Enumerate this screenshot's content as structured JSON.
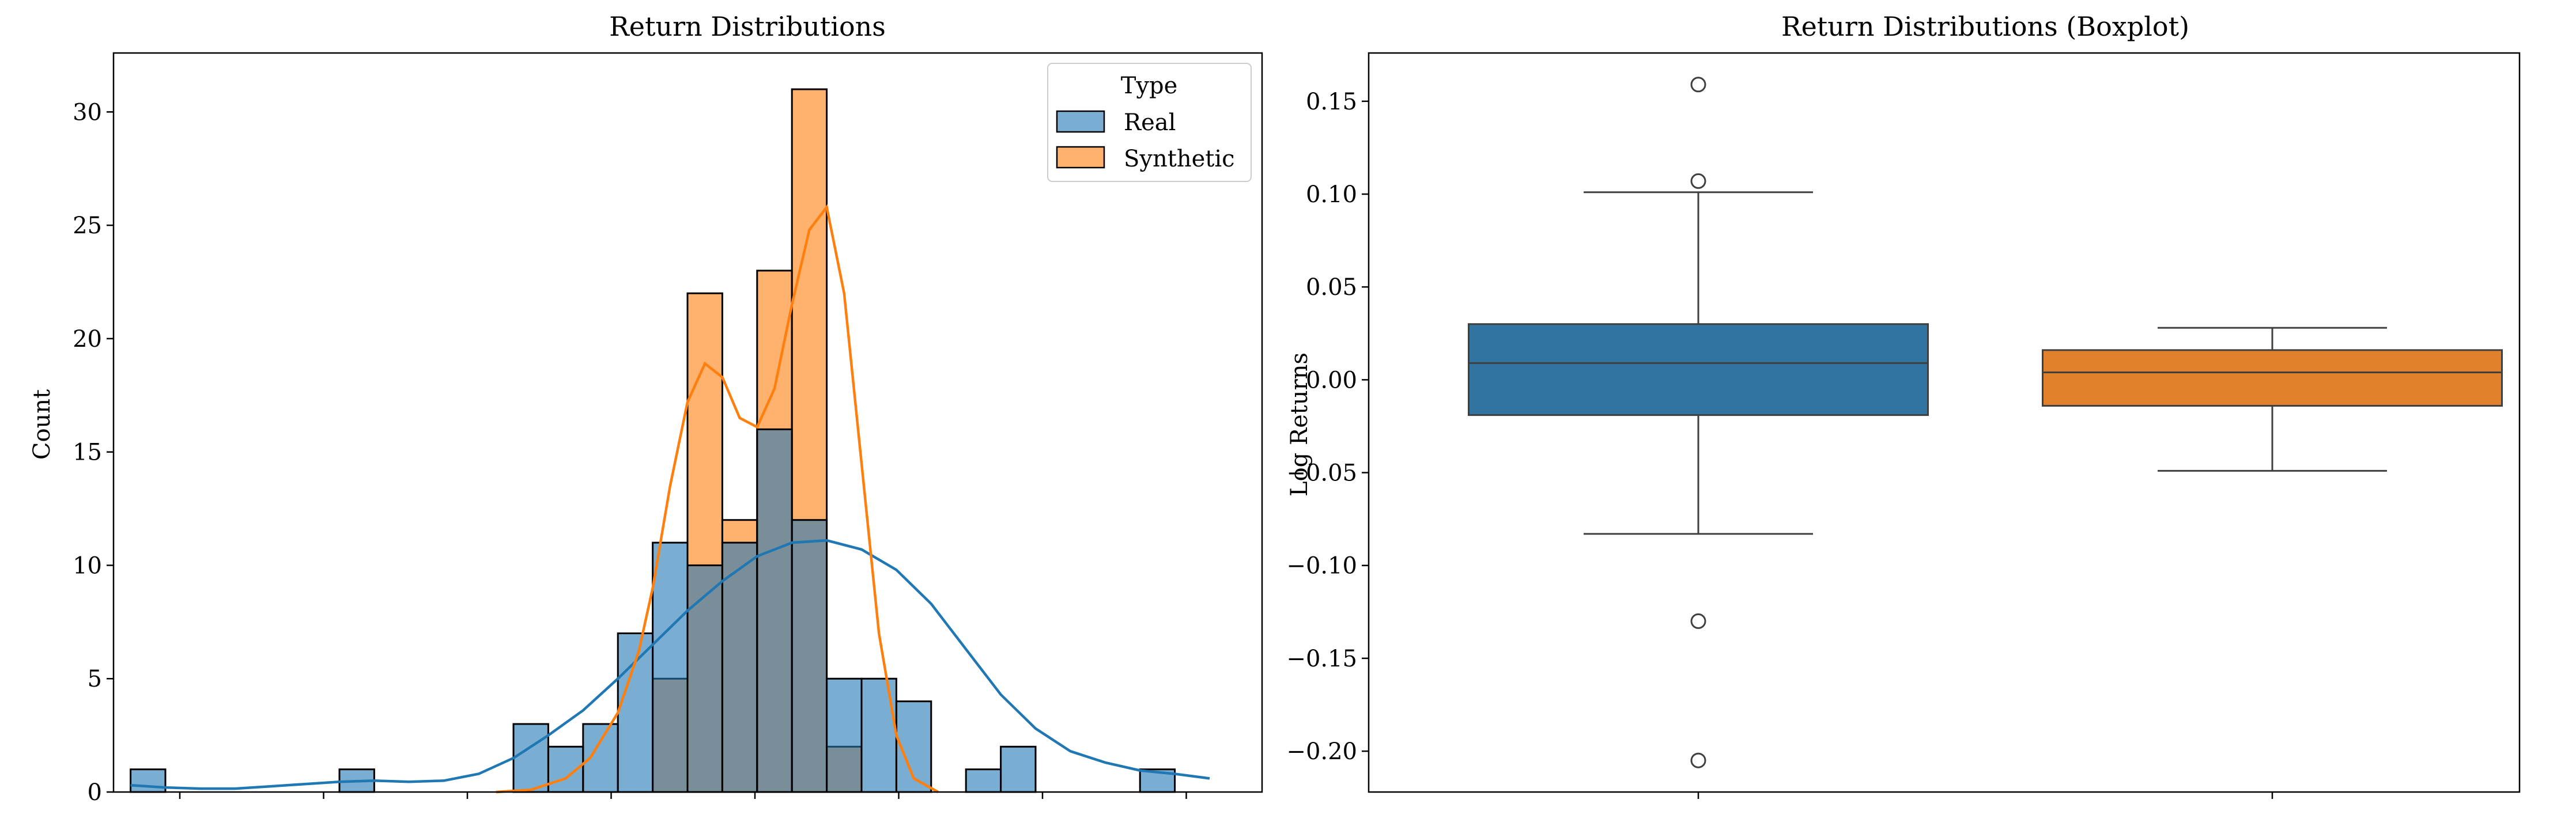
{
  "colors": {
    "real": "#1f77b4",
    "synthetic": "#ff7f0e",
    "real_box": "#3274a1",
    "synthetic_box": "#e1812c"
  },
  "chart_data": [
    {
      "type": "histogram",
      "title": "Return Distributions",
      "xlabel": "",
      "ylabel": "Count",
      "ylim": [
        0,
        32.6
      ],
      "yticks": [
        0,
        5,
        10,
        15,
        20,
        25,
        30
      ],
      "x_tick_marks": 8,
      "grid": false,
      "legend": {
        "title": "Type",
        "position": "top-right",
        "entries": [
          "Real",
          "Synthetic"
        ]
      },
      "bins": 30,
      "series": [
        {
          "name": "Real",
          "counts": [
            1,
            0,
            0,
            0,
            0,
            0,
            1,
            0,
            0,
            0,
            0,
            3,
            2,
            3,
            7,
            11,
            10,
            11,
            16,
            12,
            5,
            5,
            4,
            0,
            1,
            2,
            0,
            0,
            0,
            1
          ],
          "kde": [
            [
              0,
              0.3
            ],
            [
              1,
              0.2
            ],
            [
              2,
              0.15
            ],
            [
              3,
              0.15
            ],
            [
              4,
              0.25
            ],
            [
              5,
              0.35
            ],
            [
              6,
              0.45
            ],
            [
              7,
              0.5
            ],
            [
              8,
              0.45
            ],
            [
              9,
              0.5
            ],
            [
              10,
              0.8
            ],
            [
              11,
              1.5
            ],
            [
              12,
              2.5
            ],
            [
              13,
              3.6
            ],
            [
              14,
              5.0
            ],
            [
              15,
              6.5
            ],
            [
              16,
              8.0
            ],
            [
              17,
              9.3
            ],
            [
              18,
              10.4
            ],
            [
              19,
              11.0
            ],
            [
              20,
              11.1
            ],
            [
              21,
              10.7
            ],
            [
              22,
              9.8
            ],
            [
              23,
              8.3
            ],
            [
              24,
              6.3
            ],
            [
              25,
              4.3
            ],
            [
              26,
              2.8
            ],
            [
              27,
              1.8
            ],
            [
              28,
              1.3
            ],
            [
              29,
              0.95
            ],
            [
              30,
              0.8
            ],
            [
              31,
              0.6
            ]
          ]
        },
        {
          "name": "Synthetic",
          "counts": [
            0,
            0,
            0,
            0,
            0,
            0,
            0,
            0,
            0,
            0,
            0,
            0,
            0,
            0,
            0,
            5,
            22,
            12,
            23,
            31,
            2,
            0,
            0,
            0,
            0,
            0,
            0,
            0,
            0,
            0
          ],
          "kde": [
            [
              10.5,
              0
            ],
            [
              11.5,
              0.1
            ],
            [
              12.5,
              0.6
            ],
            [
              13.2,
              1.5
            ],
            [
              14,
              3.5
            ],
            [
              14.6,
              6.2
            ],
            [
              15,
              9.0
            ],
            [
              15.5,
              13.5
            ],
            [
              16,
              17.2
            ],
            [
              16.5,
              18.9
            ],
            [
              17,
              18.3
            ],
            [
              17.5,
              16.5
            ],
            [
              18,
              16.1
            ],
            [
              18.5,
              17.8
            ],
            [
              19,
              21.5
            ],
            [
              19.5,
              24.8
            ],
            [
              20,
              25.8
            ],
            [
              20.5,
              22.0
            ],
            [
              21,
              14.5
            ],
            [
              21.5,
              7.0
            ],
            [
              22,
              2.5
            ],
            [
              22.5,
              0.6
            ],
            [
              23.2,
              0
            ]
          ]
        }
      ]
    },
    {
      "type": "box",
      "title": "Return Distributions (Boxplot)",
      "xlabel": "",
      "ylabel": "Log Returns",
      "ylim": [
        -0.222,
        0.176
      ],
      "yticks": [
        "-0.20",
        "-0.15",
        "-0.10",
        "-0.05",
        "0.00",
        "0.05",
        "0.10",
        "0.15"
      ],
      "grid": false,
      "boxes": [
        {
          "name": "Real",
          "q1": -0.019,
          "median": 0.009,
          "q3": 0.03,
          "whisker_low": -0.083,
          "whisker_high": 0.101,
          "outliers": [
            0.159,
            0.107,
            -0.13,
            -0.205
          ]
        },
        {
          "name": "Synthetic",
          "q1": -0.014,
          "median": 0.004,
          "q3": 0.016,
          "whisker_low": -0.049,
          "whisker_high": 0.028,
          "outliers": []
        }
      ]
    }
  ]
}
